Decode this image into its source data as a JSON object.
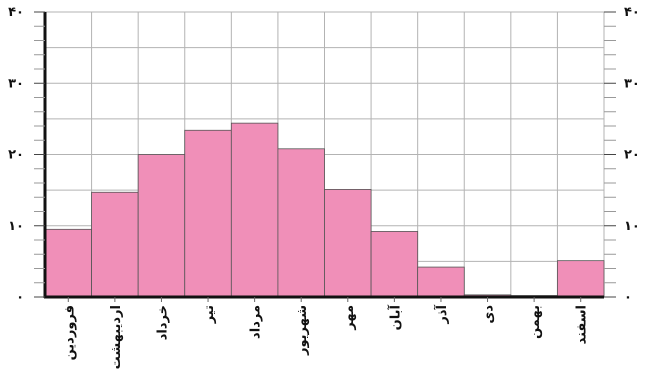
{
  "chart_data": {
    "type": "bar",
    "title": "",
    "xlabel": "",
    "ylabel": "",
    "ylim": [
      0,
      40
    ],
    "yticks": [
      0,
      10,
      20,
      30,
      40
    ],
    "ytick_labels": [
      "۰",
      "۱۰",
      "۲۰",
      "۳۰",
      "۴۰"
    ],
    "grid": true,
    "legend": "none",
    "categories": [
      "فروردین",
      "اردیبهشت",
      "خرداد",
      "تیر",
      "مرداد",
      "شهریور",
      "مهر",
      "آبان",
      "آذر",
      "دی",
      "بهمن",
      "اسفند"
    ],
    "values": [
      9.5,
      14.7,
      20.0,
      23.4,
      24.4,
      20.8,
      15.1,
      9.2,
      4.2,
      0.3,
      0.2,
      5.1
    ],
    "bar_color": "#f08fb8",
    "axis_color": "#111111",
    "grid_color": "#b3b3b3"
  }
}
